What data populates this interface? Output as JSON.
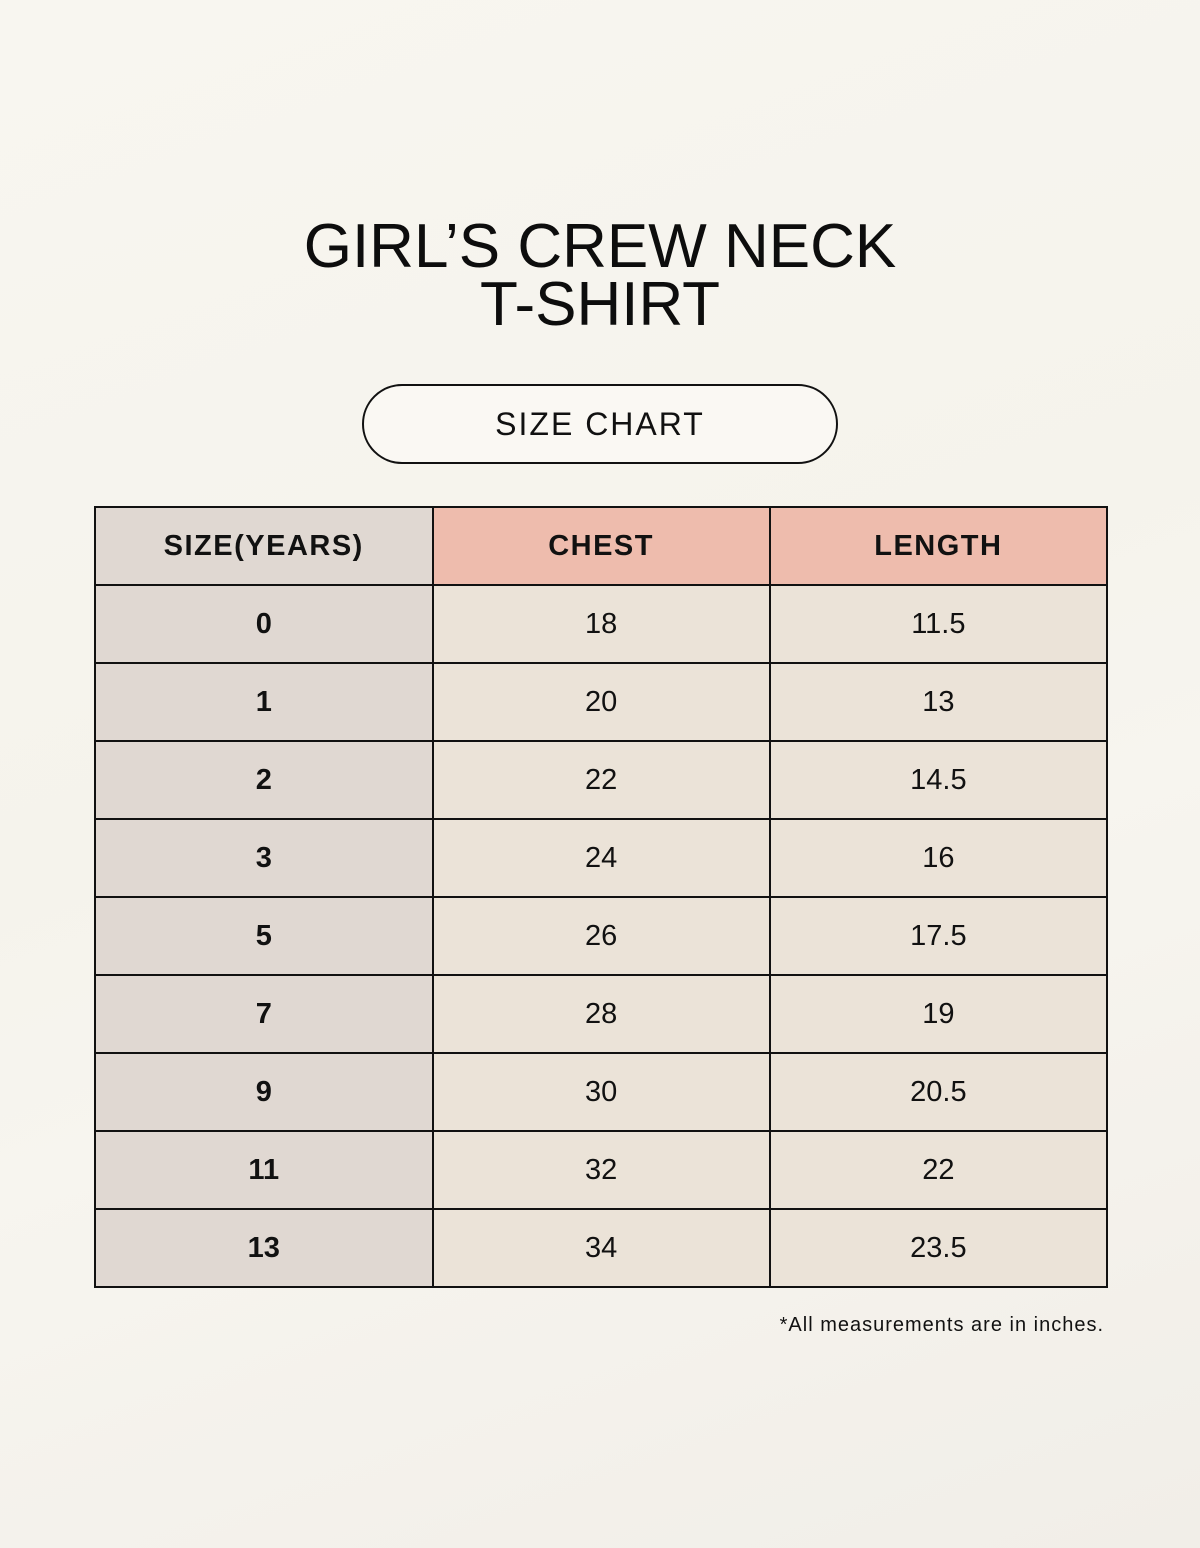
{
  "title": {
    "line1": "GIRL’S CREW NECK",
    "line2": "T-SHIRT"
  },
  "badge": "SIZE CHART",
  "colors": {
    "header_accent": "#eebcad",
    "size_column": "#e0d8d2",
    "cells": "#ebe3d8",
    "background": "#f7f5ef"
  },
  "table": {
    "headers": [
      "SIZE(YEARS)",
      "CHEST",
      "LENGTH"
    ],
    "rows": [
      [
        "0",
        "18",
        "11.5"
      ],
      [
        "1",
        "20",
        "13"
      ],
      [
        "2",
        "22",
        "14.5"
      ],
      [
        "3",
        "24",
        "16"
      ],
      [
        "5",
        "26",
        "17.5"
      ],
      [
        "7",
        "28",
        "19"
      ],
      [
        "9",
        "30",
        "20.5"
      ],
      [
        "11",
        "32",
        "22"
      ],
      [
        "13",
        "34",
        "23.5"
      ]
    ]
  },
  "footnote": "*All measurements are in inches."
}
